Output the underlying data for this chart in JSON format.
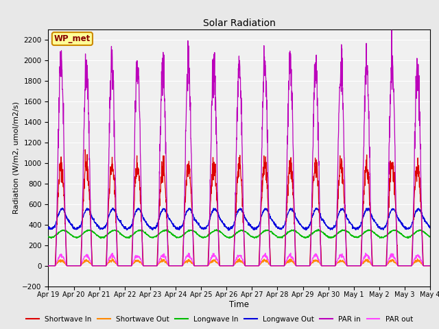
{
  "title": "Solar Radiation",
  "xlabel": "Time",
  "ylabel": "Radiation (W/m2, umol/m2/s)",
  "ylim": [
    -200,
    2300
  ],
  "yticks": [
    -200,
    0,
    200,
    400,
    600,
    800,
    1000,
    1200,
    1400,
    1600,
    1800,
    2000,
    2200
  ],
  "num_days": 15,
  "annotation_text": "WP_met",
  "annotation_bg": "#ffff99",
  "annotation_border": "#cc8800",
  "colors": {
    "shortwave_in": "#dd0000",
    "shortwave_out": "#ff8800",
    "longwave_in": "#00bb00",
    "longwave_out": "#0000dd",
    "par_in": "#bb00bb",
    "par_out": "#ff44ff"
  },
  "legend_labels": [
    "Shortwave In",
    "Shortwave Out",
    "Longwave In",
    "Longwave Out",
    "PAR in",
    "PAR out"
  ],
  "bg_color": "#e8e8e8",
  "plot_bg": "#f0f0f0",
  "x_tick_labels": [
    "Apr 19",
    "Apr 20",
    "Apr 21",
    "Apr 22",
    "Apr 23",
    "Apr 24",
    "Apr 25",
    "Apr 26",
    "Apr 27",
    "Apr 28",
    "Apr 29",
    "Apr 30",
    "May 1",
    "May 2",
    "May 3",
    "May 4"
  ]
}
